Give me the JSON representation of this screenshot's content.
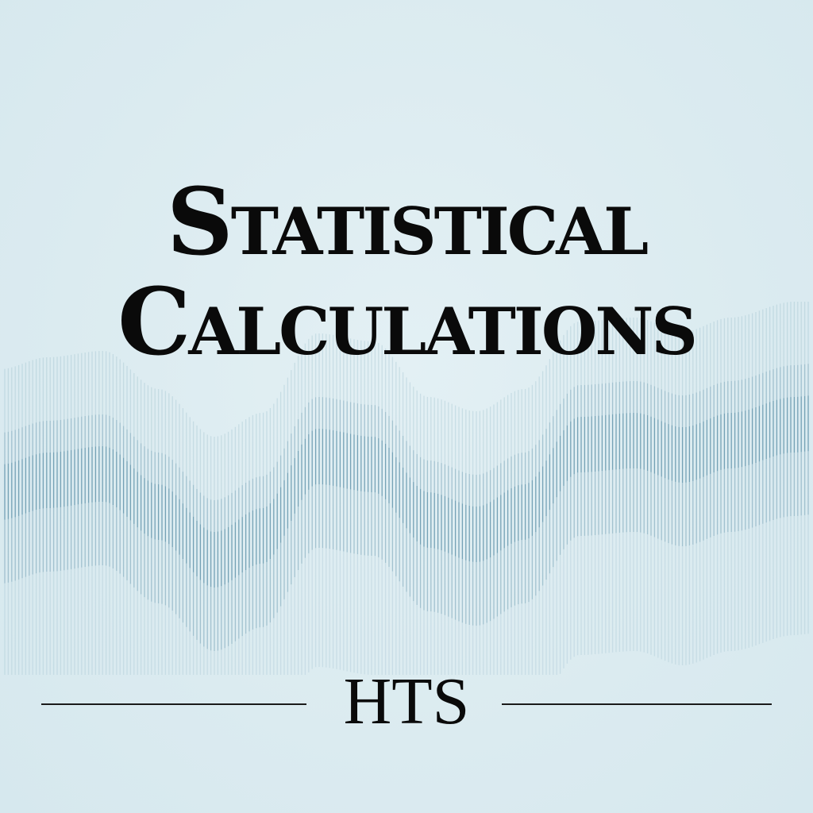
{
  "title": {
    "line1": "Statistical",
    "line2": "Calculations"
  },
  "footer": {
    "mark": "HTS"
  },
  "colors": {
    "background": "#dcecf1",
    "wave_lines": "#5a8ea6",
    "text": "#0a0a0a"
  }
}
